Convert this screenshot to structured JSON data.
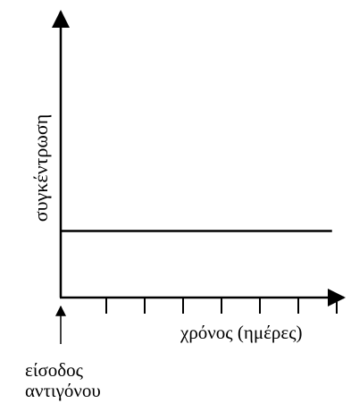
{
  "chart_data": {
    "type": "line",
    "title": "",
    "xlabel": "χρόνος (ημέρες)",
    "ylabel": "συγκέντρωση",
    "annotation": {
      "line1": "είσοδος",
      "line2": "αντιγόνου"
    },
    "grid": false,
    "x_ticks": 7,
    "series": [
      {
        "x": [
          0,
          1
        ],
        "y": [
          0.25,
          0.25
        ]
      }
    ],
    "xlim": [
      0,
      1.07
    ],
    "ylim": [
      0,
      1.1
    ]
  }
}
